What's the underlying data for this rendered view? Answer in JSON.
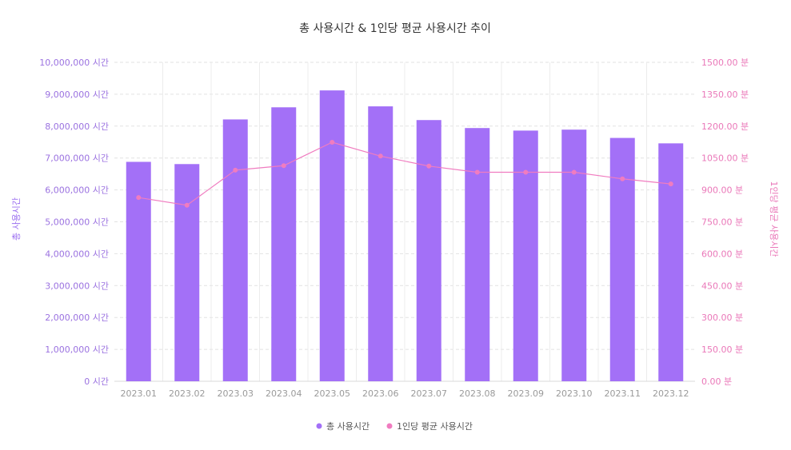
{
  "chart_data": {
    "type": "bar",
    "title": "총 사용시간 & 1인당 평균 사용시간 추이",
    "categories": [
      "2023.01",
      "2023.02",
      "2023.03",
      "2023.04",
      "2023.05",
      "2023.06",
      "2023.07",
      "2023.08",
      "2023.09",
      "2023.10",
      "2023.11",
      "2023.12"
    ],
    "series": [
      {
        "name": "총 사용시간",
        "type": "bar",
        "axis": "left",
        "color": "#a370f7",
        "values": [
          6880000,
          6810000,
          8210000,
          8590000,
          9120000,
          8620000,
          8190000,
          7940000,
          7860000,
          7890000,
          7630000,
          7460000
        ]
      },
      {
        "name": "1인당 평균 사용시간",
        "type": "line",
        "axis": "right",
        "color": "#f07cc0",
        "values": [
          864,
          828,
          993,
          1014,
          1124,
          1059,
          1012,
          983,
          983,
          983,
          952,
          928
        ]
      }
    ],
    "yaxis_left": {
      "label": "총 사용시간",
      "range": [
        0,
        10000000
      ],
      "ticks": [
        "0 시간",
        "1,000,000 시간",
        "2,000,000 시간",
        "3,000,000 시간",
        "4,000,000 시간",
        "5,000,000 시간",
        "6,000,000 시간",
        "7,000,000 시간",
        "8,000,000 시간",
        "9,000,000 시간",
        "10,000,000 시간"
      ]
    },
    "yaxis_right": {
      "label": "1인당 평균 사용시간",
      "range": [
        0,
        1500
      ],
      "ticks": [
        "0.00 분",
        "150.00 분",
        "300.00 분",
        "450.00 분",
        "600.00 분",
        "750.00 분",
        "900.00 분",
        "1050.00 분",
        "1200.00 분",
        "1350.00 분",
        "1500.00 분"
      ]
    },
    "grid": true,
    "legend_position": "bottom-center"
  }
}
